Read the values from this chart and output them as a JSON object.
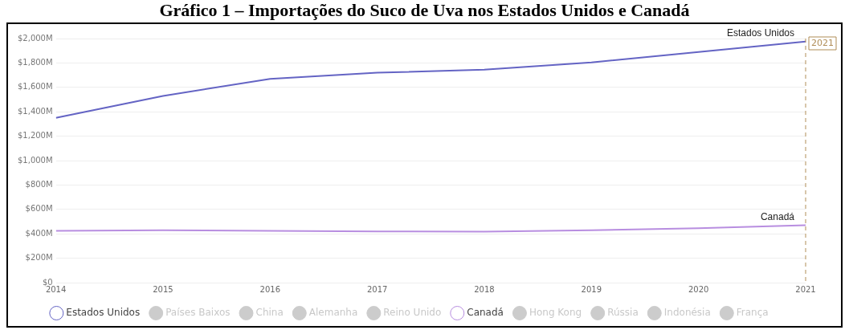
{
  "chart_data": {
    "type": "line",
    "title": "Gráfico 1 – Importações do Suco de Uva nos Estados Unidos e Canadá",
    "x": [
      2014,
      2015,
      2016,
      2017,
      2018,
      2019,
      2020,
      2021
    ],
    "xlim": [
      2014,
      2021
    ],
    "xticks": [
      2014,
      2015,
      2016,
      2017,
      2018,
      2019,
      2020,
      2021
    ],
    "ylim": [
      0,
      2000
    ],
    "yticks": [
      {
        "value": 0,
        "label": "$0"
      },
      {
        "value": 200,
        "label": "$200M"
      },
      {
        "value": 400,
        "label": "$400M"
      },
      {
        "value": 600,
        "label": "$600M"
      },
      {
        "value": 800,
        "label": "$800M"
      },
      {
        "value": 1000,
        "label": "$1,000M"
      },
      {
        "value": 1200,
        "label": "$1,200M"
      },
      {
        "value": 1400,
        "label": "$1,400M"
      },
      {
        "value": 1600,
        "label": "$1,600M"
      },
      {
        "value": 1800,
        "label": "$1,800M"
      },
      {
        "value": 2000,
        "label": "$2,000M"
      }
    ],
    "grid": "y",
    "legend": "bottom",
    "marker": "none",
    "line_style": "solid",
    "series": [
      {
        "name": "Estados Unidos",
        "color": "#6464c4",
        "values": [
          1350,
          1530,
          1670,
          1720,
          1745,
          1805,
          1890,
          1975
        ]
      },
      {
        "name": "Países Baixos",
        "color": "#cccccc",
        "values": [
          null,
          null,
          null,
          null,
          null,
          null,
          null,
          null
        ]
      },
      {
        "name": "China",
        "color": "#cccccc",
        "values": [
          null,
          null,
          null,
          null,
          null,
          null,
          null,
          null
        ]
      },
      {
        "name": "Alemanha",
        "color": "#cccccc",
        "values": [
          null,
          null,
          null,
          null,
          null,
          null,
          null,
          null
        ]
      },
      {
        "name": "Reino Unido",
        "color": "#cccccc",
        "values": [
          null,
          null,
          null,
          null,
          null,
          null,
          null,
          null
        ]
      },
      {
        "name": "Canadá",
        "color": "#b88ee0",
        "values": [
          425,
          430,
          425,
          420,
          418,
          430,
          445,
          470
        ]
      },
      {
        "name": "Hong Kong",
        "color": "#cccccc",
        "values": [
          null,
          null,
          null,
          null,
          null,
          null,
          null,
          null
        ]
      },
      {
        "name": "Rússia",
        "color": "#cccccc",
        "values": [
          null,
          null,
          null,
          null,
          null,
          null,
          null,
          null
        ]
      },
      {
        "name": "Indonésia",
        "color": "#cccccc",
        "values": [
          null,
          null,
          null,
          null,
          null,
          null,
          null,
          null
        ]
      },
      {
        "name": "França",
        "color": "#cccccc",
        "values": [
          null,
          null,
          null,
          null,
          null,
          null,
          null,
          null
        ]
      }
    ],
    "ref_lines": [
      {
        "axis": "x",
        "value": 2021,
        "label": "2021",
        "color": "#b08d57",
        "line_style": "dashed"
      }
    ]
  }
}
